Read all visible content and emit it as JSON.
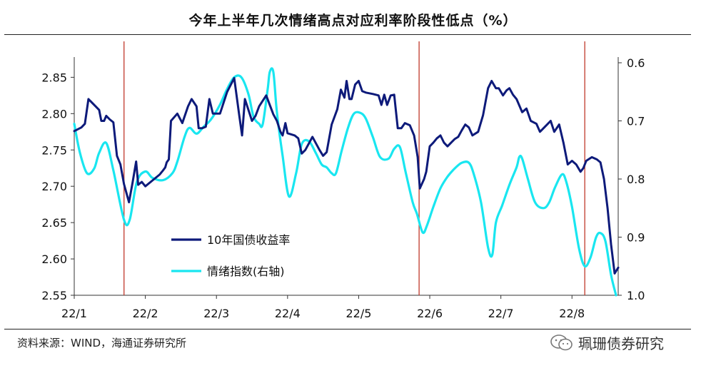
{
  "title": "今年上半年几次情绪高点对应利率阶段性低点（%）",
  "source": "资料来源：WIND，海通证券研究所",
  "watermark": "珮珊债券研究",
  "colors": {
    "bond": "#0d1a7a",
    "sentiment": "#19e6f0",
    "vline": "#c0392b",
    "axis": "#333333"
  },
  "chart_data": {
    "type": "line",
    "x_labels": [
      "22/1",
      "22/2",
      "22/3",
      "22/4",
      "22/5",
      "22/6",
      "22/7",
      "22/8"
    ],
    "x_range": [
      0,
      7.65
    ],
    "left_axis": {
      "ticks": [
        "2.85",
        "2.80",
        "2.75",
        "2.70",
        "2.65",
        "2.60",
        "2.55"
      ],
      "min": 2.55,
      "max": 2.87
    },
    "right_axis": {
      "ticks": [
        "0.6",
        "0.7",
        "0.8",
        "0.9",
        "1.0"
      ],
      "min": 0.6,
      "max": 1.0,
      "reversed": true
    },
    "vlines": [
      0.7,
      4.85,
      7.18
    ],
    "series": [
      {
        "name": "10年国债收益率",
        "axis": "left",
        "points": [
          [
            0,
            2.776
          ],
          [
            0.1,
            2.781
          ],
          [
            0.15,
            2.786
          ],
          [
            0.2,
            2.82
          ],
          [
            0.3,
            2.81
          ],
          [
            0.35,
            2.805
          ],
          [
            0.38,
            2.79
          ],
          [
            0.42,
            2.79
          ],
          [
            0.45,
            2.797
          ],
          [
            0.5,
            2.792
          ],
          [
            0.55,
            2.788
          ],
          [
            0.6,
            2.742
          ],
          [
            0.65,
            2.73
          ],
          [
            0.7,
            2.703
          ],
          [
            0.77,
            2.678
          ],
          [
            0.82,
            2.705
          ],
          [
            0.87,
            2.734
          ],
          [
            0.9,
            2.702
          ],
          [
            0.95,
            2.706
          ],
          [
            1.0,
            2.7
          ],
          [
            1.1,
            2.708
          ],
          [
            1.2,
            2.716
          ],
          [
            1.25,
            2.722
          ],
          [
            1.28,
            2.726
          ],
          [
            1.3,
            2.733
          ],
          [
            1.33,
            2.737
          ],
          [
            1.36,
            2.79
          ],
          [
            1.45,
            2.8
          ],
          [
            1.52,
            2.787
          ],
          [
            1.6,
            2.81
          ],
          [
            1.65,
            2.82
          ],
          [
            1.72,
            2.81
          ],
          [
            1.75,
            2.78
          ],
          [
            1.8,
            2.78
          ],
          [
            1.85,
            2.782
          ],
          [
            1.9,
            2.82
          ],
          [
            1.95,
            2.8
          ],
          [
            2.05,
            2.8
          ],
          [
            2.15,
            2.83
          ],
          [
            2.25,
            2.849
          ],
          [
            2.32,
            2.798
          ],
          [
            2.36,
            2.77
          ],
          [
            2.4,
            2.82
          ],
          [
            2.5,
            2.79
          ],
          [
            2.55,
            2.797
          ],
          [
            2.6,
            2.81
          ],
          [
            2.7,
            2.825
          ],
          [
            2.8,
            2.799
          ],
          [
            2.85,
            2.79
          ],
          [
            2.9,
            2.775
          ],
          [
            2.93,
            2.77
          ],
          [
            2.97,
            2.787
          ],
          [
            3.0,
            2.773
          ],
          [
            3.1,
            2.77
          ],
          [
            3.15,
            2.766
          ],
          [
            3.2,
            2.745
          ],
          [
            3.25,
            2.75
          ],
          [
            3.35,
            2.768
          ],
          [
            3.45,
            2.75
          ],
          [
            3.5,
            2.742
          ],
          [
            3.55,
            2.747
          ],
          [
            3.62,
            2.785
          ],
          [
            3.7,
            2.806
          ],
          [
            3.75,
            2.833
          ],
          [
            3.8,
            2.822
          ],
          [
            3.83,
            2.845
          ],
          [
            3.87,
            2.82
          ],
          [
            3.9,
            2.82
          ],
          [
            3.95,
            2.84
          ],
          [
            4.0,
            2.845
          ],
          [
            4.05,
            2.831
          ],
          [
            4.1,
            2.829
          ],
          [
            4.2,
            2.827
          ],
          [
            4.28,
            2.825
          ],
          [
            4.32,
            2.812
          ],
          [
            4.36,
            2.826
          ],
          [
            4.4,
            2.812
          ],
          [
            4.45,
            2.825
          ],
          [
            4.5,
            2.826
          ],
          [
            4.55,
            2.78
          ],
          [
            4.6,
            2.78
          ],
          [
            4.65,
            2.787
          ],
          [
            4.72,
            2.784
          ],
          [
            4.78,
            2.77
          ],
          [
            4.83,
            2.74
          ],
          [
            4.86,
            2.697
          ],
          [
            4.92,
            2.71
          ],
          [
            4.95,
            2.72
          ],
          [
            5.0,
            2.755
          ],
          [
            5.05,
            2.76
          ],
          [
            5.1,
            2.766
          ],
          [
            5.15,
            2.77
          ],
          [
            5.2,
            2.76
          ],
          [
            5.25,
            2.755
          ],
          [
            5.3,
            2.76
          ],
          [
            5.35,
            2.765
          ],
          [
            5.4,
            2.768
          ],
          [
            5.45,
            2.777
          ],
          [
            5.5,
            2.785
          ],
          [
            5.55,
            2.781
          ],
          [
            5.6,
            2.77
          ],
          [
            5.68,
            2.775
          ],
          [
            5.75,
            2.798
          ],
          [
            5.82,
            2.835
          ],
          [
            5.87,
            2.845
          ],
          [
            5.93,
            2.835
          ],
          [
            5.97,
            2.835
          ],
          [
            6.03,
            2.825
          ],
          [
            6.08,
            2.832
          ],
          [
            6.12,
            2.835
          ],
          [
            6.17,
            2.826
          ],
          [
            6.22,
            2.82
          ],
          [
            6.3,
            2.802
          ],
          [
            6.36,
            2.807
          ],
          [
            6.42,
            2.79
          ],
          [
            6.5,
            2.786
          ],
          [
            6.55,
            2.775
          ],
          [
            6.62,
            2.782
          ],
          [
            6.7,
            2.79
          ],
          [
            6.75,
            2.775
          ],
          [
            6.82,
            2.785
          ],
          [
            6.88,
            2.76
          ],
          [
            6.94,
            2.73
          ],
          [
            7.0,
            2.735
          ],
          [
            7.06,
            2.73
          ],
          [
            7.12,
            2.72
          ],
          [
            7.16,
            2.725
          ],
          [
            7.2,
            2.735
          ],
          [
            7.28,
            2.74
          ],
          [
            7.35,
            2.737
          ],
          [
            7.4,
            2.733
          ],
          [
            7.45,
            2.71
          ],
          [
            7.5,
            2.67
          ],
          [
            7.55,
            2.62
          ],
          [
            7.6,
            2.58
          ],
          [
            7.65,
            2.588
          ]
        ]
      },
      {
        "name": "情绪指数(右轴)",
        "axis": "right",
        "points": [
          [
            0,
            0.705
          ],
          [
            0.08,
            0.755
          ],
          [
            0.18,
            0.79
          ],
          [
            0.28,
            0.782
          ],
          [
            0.35,
            0.755
          ],
          [
            0.45,
            0.738
          ],
          [
            0.55,
            0.785
          ],
          [
            0.7,
            0.87
          ],
          [
            0.78,
            0.87
          ],
          [
            0.88,
            0.805
          ],
          [
            1.0,
            0.787
          ],
          [
            1.1,
            0.798
          ],
          [
            1.25,
            0.802
          ],
          [
            1.38,
            0.79
          ],
          [
            1.45,
            0.77
          ],
          [
            1.55,
            0.728
          ],
          [
            1.62,
            0.712
          ],
          [
            1.72,
            0.722
          ],
          [
            1.82,
            0.71
          ],
          [
            1.92,
            0.698
          ],
          [
            2.05,
            0.672
          ],
          [
            2.15,
            0.645
          ],
          [
            2.25,
            0.625
          ],
          [
            2.35,
            0.625
          ],
          [
            2.45,
            0.654
          ],
          [
            2.52,
            0.692
          ],
          [
            2.6,
            0.705
          ],
          [
            2.65,
            0.706
          ],
          [
            2.72,
            0.646
          ],
          [
            2.75,
            0.616
          ],
          [
            2.8,
            0.616
          ],
          [
            2.85,
            0.685
          ],
          [
            2.93,
            0.76
          ],
          [
            3.02,
            0.83
          ],
          [
            3.12,
            0.79
          ],
          [
            3.2,
            0.74
          ],
          [
            3.3,
            0.735
          ],
          [
            3.4,
            0.756
          ],
          [
            3.48,
            0.775
          ],
          [
            3.55,
            0.78
          ],
          [
            3.62,
            0.79
          ],
          [
            3.68,
            0.79
          ],
          [
            3.76,
            0.752
          ],
          [
            3.85,
            0.712
          ],
          [
            3.93,
            0.688
          ],
          [
            4.02,
            0.686
          ],
          [
            4.1,
            0.696
          ],
          [
            4.2,
            0.728
          ],
          [
            4.3,
            0.762
          ],
          [
            4.42,
            0.765
          ],
          [
            4.5,
            0.748
          ],
          [
            4.58,
            0.745
          ],
          [
            4.66,
            0.788
          ],
          [
            4.76,
            0.84
          ],
          [
            4.82,
            0.86
          ],
          [
            4.9,
            0.892
          ],
          [
            4.96,
            0.88
          ],
          [
            5.05,
            0.848
          ],
          [
            5.15,
            0.816
          ],
          [
            5.25,
            0.796
          ],
          [
            5.35,
            0.782
          ],
          [
            5.45,
            0.772
          ],
          [
            5.55,
            0.772
          ],
          [
            5.62,
            0.792
          ],
          [
            5.72,
            0.84
          ],
          [
            5.82,
            0.918
          ],
          [
            5.88,
            0.93
          ],
          [
            5.93,
            0.875
          ],
          [
            6.02,
            0.845
          ],
          [
            6.12,
            0.81
          ],
          [
            6.22,
            0.78
          ],
          [
            6.26,
            0.762
          ],
          [
            6.3,
            0.765
          ],
          [
            6.38,
            0.8
          ],
          [
            6.48,
            0.84
          ],
          [
            6.6,
            0.85
          ],
          [
            6.68,
            0.84
          ],
          [
            6.76,
            0.815
          ],
          [
            6.86,
            0.792
          ],
          [
            6.92,
            0.805
          ],
          [
            7.0,
            0.848
          ],
          [
            7.1,
            0.92
          ],
          [
            7.18,
            0.95
          ],
          [
            7.26,
            0.935
          ],
          [
            7.34,
            0.9
          ],
          [
            7.4,
            0.893
          ],
          [
            7.47,
            0.907
          ],
          [
            7.55,
            0.965
          ],
          [
            7.62,
            1.0
          ]
        ]
      }
    ],
    "legend": [
      {
        "label": "10年国债收益率"
      },
      {
        "label": "情绪指数(右轴)"
      }
    ]
  }
}
